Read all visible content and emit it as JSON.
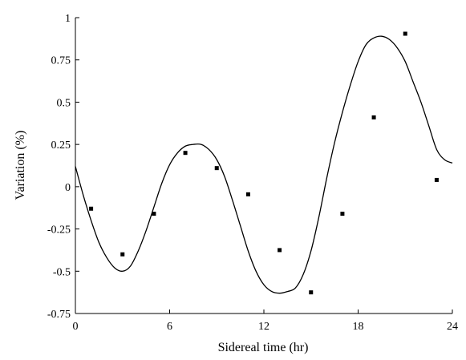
{
  "chart_data": {
    "type": "scatter",
    "title": "",
    "xlabel": "Sidereal time (hr)",
    "ylabel": "Variation (%)",
    "xlim": [
      0,
      24
    ],
    "ylim": [
      -0.75,
      1
    ],
    "xticks": [
      0,
      6,
      12,
      18,
      24
    ],
    "xtick_labels": [
      "0",
      "6",
      "12",
      "18",
      "24"
    ],
    "yticks": [
      -0.75,
      -0.5,
      -0.25,
      0,
      0.25,
      0.5,
      0.75,
      1
    ],
    "ytick_labels": [
      "-0.75",
      "-0.5",
      "-0.25",
      "0",
      "0.25",
      "0.5",
      "0.75",
      "1"
    ],
    "grid": false,
    "legend": "none",
    "series": [
      {
        "kind": "points",
        "marker": "square",
        "color": "#000000",
        "x": [
          1,
          3,
          5,
          7,
          9,
          11,
          13,
          15,
          17,
          19,
          21,
          23
        ],
        "y": [
          -0.13,
          -0.4,
          -0.16,
          0.2,
          0.11,
          -0.045,
          -0.375,
          -0.625,
          -0.16,
          0.41,
          0.905,
          0.04
        ]
      },
      {
        "kind": "fit-curve",
        "color": "#000000",
        "x": [
          0,
          0.5,
          1,
          1.5,
          2,
          2.5,
          3,
          3.5,
          4,
          4.5,
          5,
          5.5,
          6,
          6.5,
          7,
          7.5,
          8,
          8.5,
          9,
          9.5,
          10,
          10.5,
          11,
          11.5,
          12,
          12.5,
          13,
          13.5,
          14,
          14.5,
          15,
          15.5,
          16,
          16.5,
          17,
          17.5,
          18,
          18.5,
          19,
          19.5,
          20,
          20.5,
          21,
          21.5,
          22,
          22.5,
          23,
          23.5,
          24
        ],
        "y": [
          0.12,
          -0.05,
          -0.2,
          -0.33,
          -0.42,
          -0.48,
          -0.5,
          -0.47,
          -0.38,
          -0.26,
          -0.12,
          0.02,
          0.13,
          0.2,
          0.24,
          0.25,
          0.25,
          0.22,
          0.16,
          0.06,
          -0.08,
          -0.23,
          -0.38,
          -0.5,
          -0.58,
          -0.62,
          -0.63,
          -0.62,
          -0.6,
          -0.52,
          -0.38,
          -0.18,
          0.05,
          0.26,
          0.44,
          0.6,
          0.74,
          0.84,
          0.88,
          0.89,
          0.87,
          0.82,
          0.74,
          0.62,
          0.5,
          0.36,
          0.22,
          0.16,
          0.14
        ]
      }
    ]
  }
}
